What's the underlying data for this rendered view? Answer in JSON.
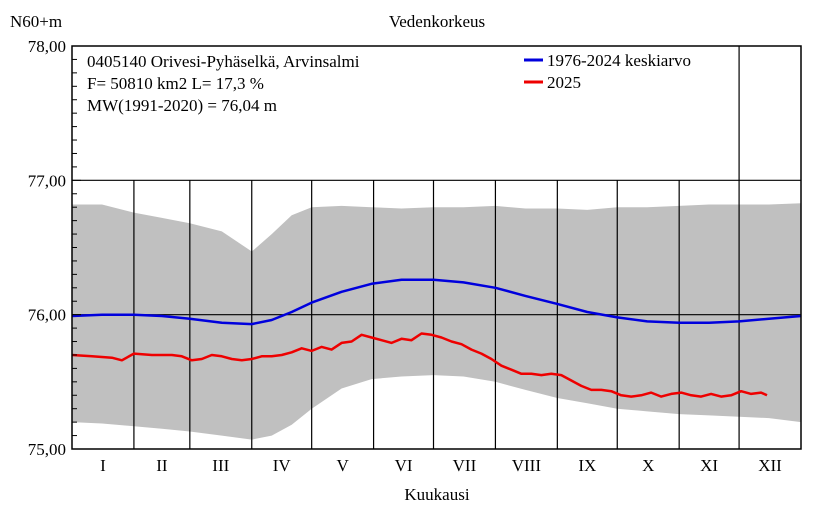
{
  "chart_data": {
    "type": "line",
    "title": "Vedenkorkeus",
    "ylabel": "N60+m",
    "xlabel": "Kuukausi",
    "ylim": [
      75.0,
      78.0
    ],
    "yticks": [
      {
        "value": 78.0,
        "label": "78,00"
      },
      {
        "value": 77.0,
        "label": "77,00"
      },
      {
        "value": 76.0,
        "label": "76,00"
      },
      {
        "value": 75.0,
        "label": "75,00"
      }
    ],
    "x_unit": "day_of_year",
    "xlim": [
      0,
      365
    ],
    "months": [
      "I",
      "II",
      "III",
      "IV",
      "V",
      "VI",
      "VII",
      "VIII",
      "IX",
      "X",
      "XI",
      "XII"
    ],
    "info": [
      "0405140 Orivesi-Pyhäselkä, Arvinsalmi",
      "F=  50810 km2 L=  17,3 %",
      "MW(1991-2020) = 76,04 m"
    ],
    "legend": [
      {
        "label": "1976-2024 keskiarvo",
        "color": "#0000dd"
      },
      {
        "label": "2025",
        "color": "#ee0000"
      }
    ],
    "band": {
      "name": "min-max range 1976-2024",
      "color": "#c0c0c0",
      "x": [
        0,
        15,
        31,
        45,
        59,
        75,
        90,
        100,
        110,
        120,
        135,
        150,
        165,
        181,
        196,
        212,
        227,
        243,
        258,
        273,
        288,
        304,
        319,
        334,
        349,
        365
      ],
      "upper": [
        76.82,
        76.82,
        76.76,
        76.72,
        76.68,
        76.62,
        76.47,
        76.6,
        76.74,
        76.8,
        76.81,
        76.8,
        76.79,
        76.8,
        76.8,
        76.81,
        76.79,
        76.79,
        76.78,
        76.8,
        76.8,
        76.81,
        76.82,
        76.82,
        76.82,
        76.83
      ],
      "lower": [
        75.2,
        75.19,
        75.17,
        75.15,
        75.13,
        75.1,
        75.07,
        75.1,
        75.18,
        75.3,
        75.45,
        75.52,
        75.54,
        75.55,
        75.54,
        75.5,
        75.44,
        75.38,
        75.34,
        75.3,
        75.28,
        75.26,
        75.25,
        75.24,
        75.23,
        75.2
      ]
    },
    "series": [
      {
        "name": "1976-2024 keskiarvo",
        "color": "#0000dd",
        "x": [
          0,
          15,
          31,
          45,
          59,
          75,
          90,
          100,
          110,
          120,
          135,
          150,
          165,
          181,
          196,
          212,
          227,
          243,
          258,
          273,
          288,
          304,
          319,
          334,
          349,
          365
        ],
        "values": [
          75.99,
          76.0,
          76.0,
          75.99,
          75.97,
          75.94,
          75.93,
          75.96,
          76.02,
          76.09,
          76.17,
          76.23,
          76.26,
          76.26,
          76.24,
          76.2,
          76.14,
          76.08,
          76.02,
          75.98,
          75.95,
          75.94,
          75.94,
          75.95,
          75.97,
          75.99
        ]
      },
      {
        "name": "2025",
        "color": "#ee0000",
        "x": [
          0,
          10,
          20,
          25,
          31,
          40,
          50,
          55,
          60,
          65,
          70,
          75,
          80,
          85,
          90,
          95,
          100,
          105,
          110,
          115,
          120,
          125,
          130,
          135,
          140,
          145,
          150,
          155,
          160,
          165,
          170,
          175,
          180,
          185,
          190,
          195,
          200,
          205,
          210,
          215,
          220,
          225,
          230,
          235,
          240,
          245,
          250,
          255,
          260,
          265,
          270,
          275,
          280,
          285,
          290,
          295,
          300,
          305,
          310,
          315,
          320,
          325,
          330,
          335,
          340,
          345,
          348
        ],
        "values": [
          75.7,
          75.69,
          75.68,
          75.66,
          75.71,
          75.7,
          75.7,
          75.69,
          75.66,
          75.67,
          75.7,
          75.69,
          75.67,
          75.66,
          75.67,
          75.69,
          75.69,
          75.7,
          75.72,
          75.75,
          75.73,
          75.76,
          75.74,
          75.79,
          75.8,
          75.85,
          75.83,
          75.81,
          75.79,
          75.82,
          75.81,
          75.86,
          75.85,
          75.83,
          75.8,
          75.78,
          75.74,
          75.71,
          75.67,
          75.62,
          75.59,
          75.56,
          75.56,
          75.55,
          75.56,
          75.55,
          75.51,
          75.47,
          75.44,
          75.44,
          75.43,
          75.4,
          75.39,
          75.4,
          75.42,
          75.39,
          75.41,
          75.42,
          75.4,
          75.39,
          75.41,
          75.39,
          75.4,
          75.43,
          75.41,
          75.42,
          75.4
        ]
      }
    ]
  }
}
